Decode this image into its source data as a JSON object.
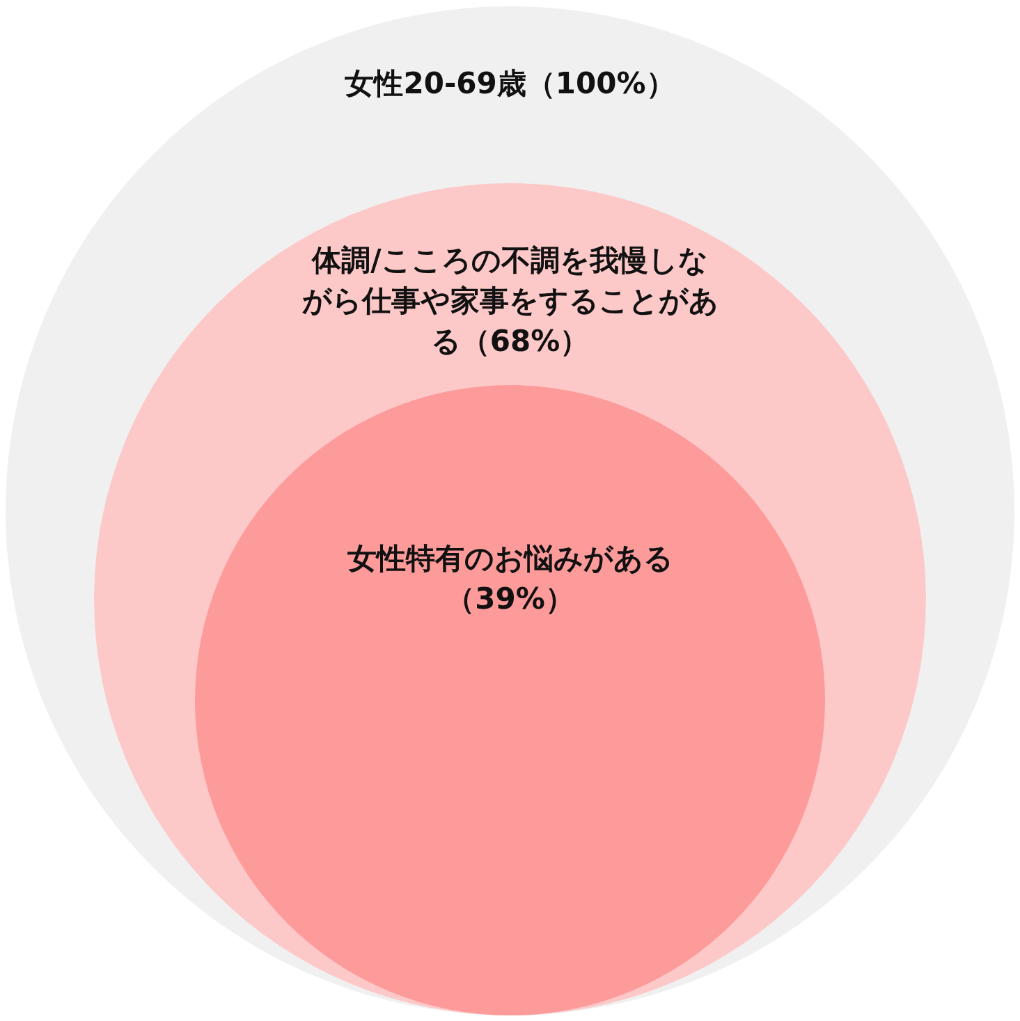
{
  "chart_data": {
    "type": "other",
    "categories": [
      "女性20-69歳",
      "体調/こころの不調を我慢しながら仕事や家事をすることがある",
      "女性特有のお悩みがある"
    ],
    "values": [
      100,
      68,
      39
    ],
    "value_labels": [
      "（100%）",
      "（68%）",
      "（39%）"
    ],
    "colors": [
      "#f0f0f0",
      "#fdc8c8",
      "#fd9a9a"
    ]
  }
}
